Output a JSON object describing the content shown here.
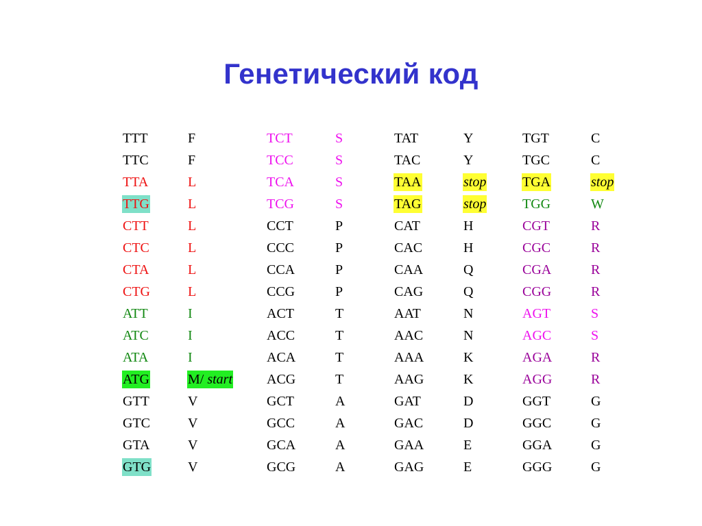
{
  "title": "Генетический код",
  "colors": {
    "title": "#3333cc",
    "black": "#000000",
    "red": "#ee1111",
    "green": "#118811",
    "magenta": "#ee11ee",
    "purple": "#990099",
    "highlight_yellow": "#ffff33",
    "highlight_green": "#22ee22",
    "highlight_teal": "#7fe0c8"
  },
  "rows": [
    {
      "c1": "TTT",
      "a1": "F",
      "c2": "TCT",
      "a2": "S",
      "c3": "TAT",
      "a3": "Y",
      "c4": "TGT",
      "a4": "C"
    },
    {
      "c1": "TTC",
      "a1": "F",
      "c2": "TCC",
      "a2": "S",
      "c3": "TAC",
      "a3": "Y",
      "c4": "TGC",
      "a4": "C"
    },
    {
      "c1": "TTA",
      "a1": "L",
      "c2": "TCA",
      "a2": "S",
      "c3": "TAA",
      "a3": "stop",
      "c4": "TGA",
      "a4": "stop"
    },
    {
      "c1": "TTG",
      "a1": "L",
      "c2": "TCG",
      "a2": "S",
      "c3": "TAG",
      "a3": "stop",
      "c4": "TGG",
      "a4": "W"
    },
    {
      "c1": "CTT",
      "a1": "L",
      "c2": "CCT",
      "a2": "P",
      "c3": "CAT",
      "a3": "H",
      "c4": "CGT",
      "a4": "R"
    },
    {
      "c1": "CTC",
      "a1": "L",
      "c2": "CCC",
      "a2": "P",
      "c3": "CAC",
      "a3": "H",
      "c4": "CGC",
      "a4": "R"
    },
    {
      "c1": "CTA",
      "a1": "L",
      "c2": "CCA",
      "a2": "P",
      "c3": "CAA",
      "a3": "Q",
      "c4": "CGA",
      "a4": "R"
    },
    {
      "c1": "CTG",
      "a1": "L",
      "c2": "CCG",
      "a2": "P",
      "c3": "CAG",
      "a3": "Q",
      "c4": "CGG",
      "a4": "R"
    },
    {
      "c1": "ATT",
      "a1": "I",
      "c2": "ACT",
      "a2": "T",
      "c3": "AAT",
      "a3": "N",
      "c4": "AGT",
      "a4": "S"
    },
    {
      "c1": "ATC",
      "a1": "I",
      "c2": "ACC",
      "a2": "T",
      "c3": "AAC",
      "a3": "N",
      "c4": "AGC",
      "a4": "S"
    },
    {
      "c1": "ATA",
      "a1": "I",
      "c2": "ACA",
      "a2": "T",
      "c3": "AAA",
      "a3": "K",
      "c4": "AGA",
      "a4": "R"
    },
    {
      "c1": "ATG",
      "a1": "M/",
      "a1b": "start",
      "c2": "ACG",
      "a2": "T",
      "c3": "AAG",
      "a3": "K",
      "c4": "AGG",
      "a4": "R"
    },
    {
      "c1": "GTT",
      "a1": "V",
      "c2": "GCT",
      "a2": "A",
      "c3": "GAT",
      "a3": "D",
      "c4": "GGT",
      "a4": "G"
    },
    {
      "c1": "GTC",
      "a1": "V",
      "c2": "GCC",
      "a2": "A",
      "c3": "GAC",
      "a3": "D",
      "c4": "GGC",
      "a4": "G"
    },
    {
      "c1": "GTA",
      "a1": "V",
      "c2": "GCA",
      "a2": "A",
      "c3": "GAA",
      "a3": "E",
      "c4": "GGA",
      "a4": "G"
    },
    {
      "c1": "GTG",
      "a1": "V",
      "c2": "GCG",
      "a2": "A",
      "c3": "GAG",
      "a3": "E",
      "c4": "GGG",
      "a4": "G"
    }
  ]
}
